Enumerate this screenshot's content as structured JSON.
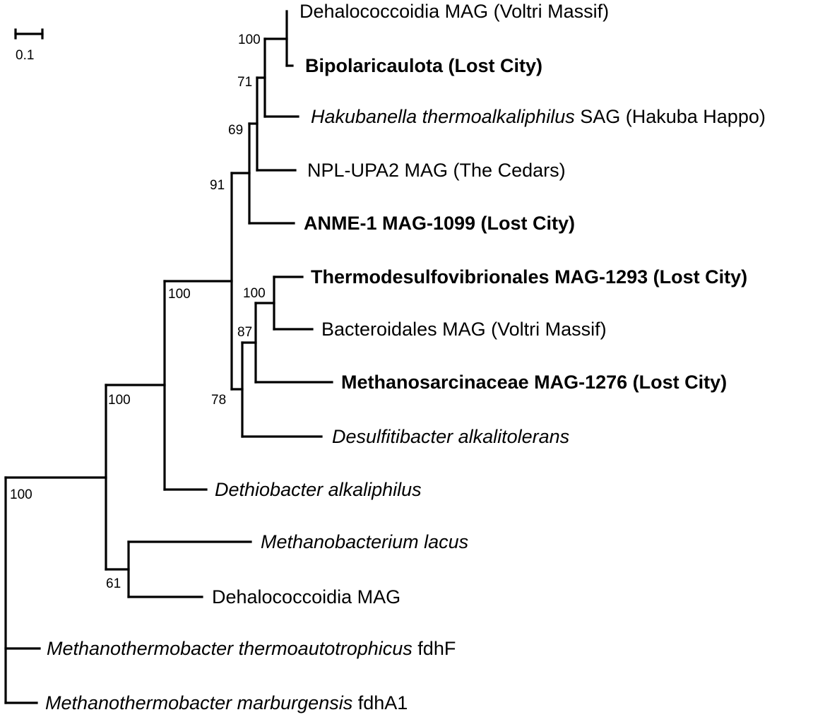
{
  "scale_bar": {
    "label": "0.1"
  },
  "leaves": [
    {
      "id": "dehalo_voltri",
      "segments": [
        {
          "text": "Dehalococcoidia MAG (Voltri Massif)",
          "italic": false
        }
      ],
      "bold": false
    },
    {
      "id": "bipolaricaulota",
      "segments": [
        {
          "text": "Bipolaricaulota (Lost City)",
          "italic": false
        }
      ],
      "bold": true
    },
    {
      "id": "hakubanella",
      "segments": [
        {
          "text": "Hakubanella thermoalkaliphilus",
          "italic": true
        },
        {
          "text": " SAG (Hakuba Happo)",
          "italic": false
        }
      ],
      "bold": false
    },
    {
      "id": "npl_upa2",
      "segments": [
        {
          "text": "NPL-UPA2 MAG (The Cedars)",
          "italic": false
        }
      ],
      "bold": false
    },
    {
      "id": "anme1",
      "segments": [
        {
          "text": "ANME-1 MAG-1099 (Lost City)",
          "italic": false
        }
      ],
      "bold": true
    },
    {
      "id": "thermodesulfo",
      "segments": [
        {
          "text": "Thermodesulfovibrionales MAG-1293 (Lost City)",
          "italic": false
        }
      ],
      "bold": true
    },
    {
      "id": "bacteroidales",
      "segments": [
        {
          "text": "Bacteroidales MAG (Voltri Massif)",
          "italic": false
        }
      ],
      "bold": false
    },
    {
      "id": "methanosarcinaceae",
      "segments": [
        {
          "text": "Methanosarcinaceae MAG-1276 (Lost City)",
          "italic": false
        }
      ],
      "bold": true
    },
    {
      "id": "desulfitibacter",
      "segments": [
        {
          "text": "Desulfitibacter alkalitolerans",
          "italic": true
        }
      ],
      "bold": false
    },
    {
      "id": "dethiobacter",
      "segments": [
        {
          "text": "Dethiobacter alkaliphilus",
          "italic": true
        }
      ],
      "bold": false
    },
    {
      "id": "methanobacterium",
      "segments": [
        {
          "text": "Methanobacterium lacus",
          "italic": true
        }
      ],
      "bold": false
    },
    {
      "id": "dehalo_mag",
      "segments": [
        {
          "text": "Dehalococcoidia MAG",
          "italic": false
        }
      ],
      "bold": false
    },
    {
      "id": "mth_thermo",
      "segments": [
        {
          "text": "Methanothermobacter thermoautotrophicus",
          "italic": true
        },
        {
          "text": " fdhF",
          "italic": false
        }
      ],
      "bold": false
    },
    {
      "id": "mth_marb",
      "segments": [
        {
          "text": "Methanothermobacter marburgensis",
          "italic": true
        },
        {
          "text": " fdhA1",
          "italic": false
        }
      ],
      "bold": false
    }
  ],
  "support_values": [
    {
      "node": "n_dehalo_bipol",
      "value": "100"
    },
    {
      "node": "n_hakubanella",
      "value": "71"
    },
    {
      "node": "n_npl",
      "value": "69"
    },
    {
      "node": "n_anme",
      "value": "91"
    },
    {
      "node": "n_thermo_bact",
      "value": "100"
    },
    {
      "node": "n_methanosarc",
      "value": "87"
    },
    {
      "node": "n_desulfit",
      "value": "78"
    },
    {
      "node": "n_ingroup",
      "value": "100"
    },
    {
      "node": "n_dethio",
      "value": "100"
    },
    {
      "node": "n_mbact_dehalo",
      "value": "61"
    },
    {
      "node": "n_root",
      "value": "100"
    }
  ]
}
